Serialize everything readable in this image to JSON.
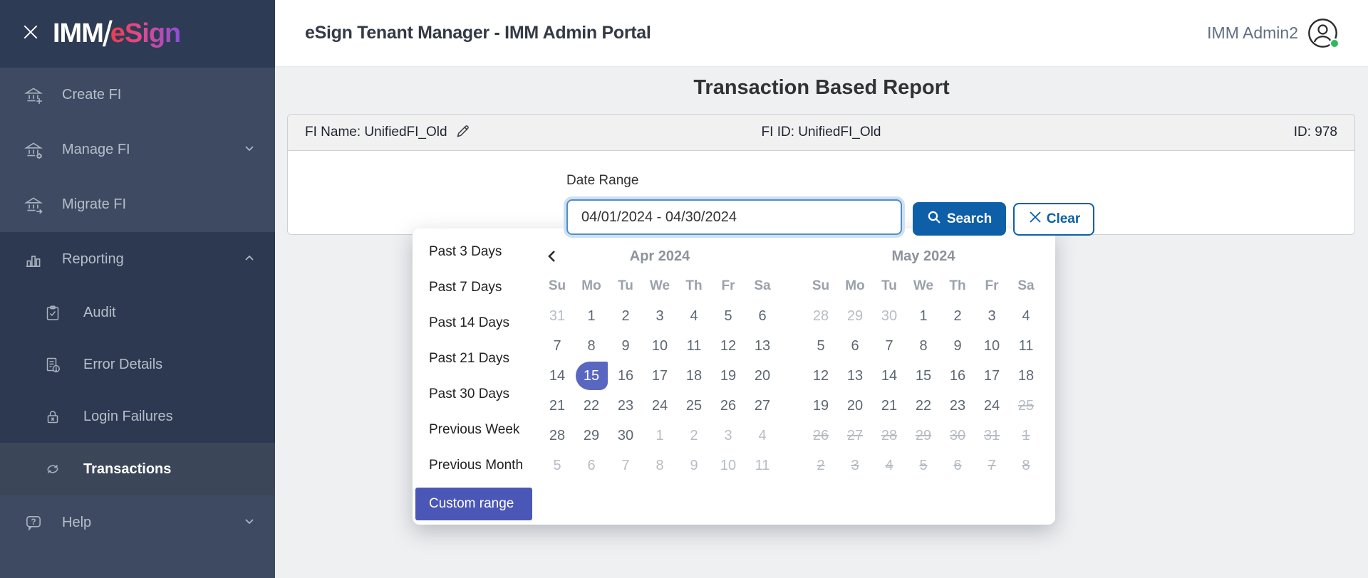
{
  "colors": {
    "accent_blue": "#0d5fa8",
    "selected_day_indigo": "#5a67c1",
    "custom_range_indigo": "#4b57b7",
    "status_green": "#2eb85c"
  },
  "sidebar": {
    "logo": {
      "imm": "IMM",
      "slash": "/",
      "esign": "eSign"
    },
    "items": [
      {
        "label": "Create FI"
      },
      {
        "label": "Manage FI"
      },
      {
        "label": "Migrate FI"
      },
      {
        "label": "Reporting"
      },
      {
        "label": "Audit"
      },
      {
        "label": "Error Details"
      },
      {
        "label": "Login Failures"
      },
      {
        "label": "Transactions"
      },
      {
        "label": "Help"
      }
    ]
  },
  "header": {
    "title": "eSign Tenant Manager - IMM Admin Portal",
    "user_name": "IMM Admin2"
  },
  "main": {
    "page_title": "Transaction Based Report",
    "fi_bar": {
      "fi_name": "FI Name: UnifiedFI_Old",
      "fi_id": "FI ID: UnifiedFI_Old",
      "record_id": "ID: 978"
    },
    "form": {
      "date_range_label": "Date Range",
      "date_range_value": "04/01/2024 - 04/30/2024",
      "search_label": "Search",
      "clear_label": "Clear"
    }
  },
  "datepicker": {
    "presets": [
      "Past 3 Days",
      "Past 7 Days",
      "Past 14 Days",
      "Past 21 Days",
      "Past 30 Days",
      "Previous Week",
      "Previous Month"
    ],
    "custom_range_label": "Custom range",
    "day_headers": [
      "Su",
      "Mo",
      "Tu",
      "We",
      "Th",
      "Fr",
      "Sa"
    ],
    "months": [
      {
        "title": "Apr 2024",
        "weeks": [
          [
            {
              "d": "31",
              "s": "m"
            },
            {
              "d": "1",
              "s": "n"
            },
            {
              "d": "2",
              "s": "n"
            },
            {
              "d": "3",
              "s": "n"
            },
            {
              "d": "4",
              "s": "n"
            },
            {
              "d": "5",
              "s": "n"
            },
            {
              "d": "6",
              "s": "n"
            }
          ],
          [
            {
              "d": "7",
              "s": "n"
            },
            {
              "d": "8",
              "s": "n"
            },
            {
              "d": "9",
              "s": "n"
            },
            {
              "d": "10",
              "s": "n"
            },
            {
              "d": "11",
              "s": "n"
            },
            {
              "d": "12",
              "s": "n"
            },
            {
              "d": "13",
              "s": "n"
            }
          ],
          [
            {
              "d": "14",
              "s": "n"
            },
            {
              "d": "15",
              "s": "s"
            },
            {
              "d": "16",
              "s": "n"
            },
            {
              "d": "17",
              "s": "n"
            },
            {
              "d": "18",
              "s": "n"
            },
            {
              "d": "19",
              "s": "n"
            },
            {
              "d": "20",
              "s": "n"
            }
          ],
          [
            {
              "d": "21",
              "s": "n"
            },
            {
              "d": "22",
              "s": "n"
            },
            {
              "d": "23",
              "s": "n"
            },
            {
              "d": "24",
              "s": "n"
            },
            {
              "d": "25",
              "s": "n"
            },
            {
              "d": "26",
              "s": "n"
            },
            {
              "d": "27",
              "s": "n"
            }
          ],
          [
            {
              "d": "28",
              "s": "n"
            },
            {
              "d": "29",
              "s": "n"
            },
            {
              "d": "30",
              "s": "n"
            },
            {
              "d": "1",
              "s": "m"
            },
            {
              "d": "2",
              "s": "m"
            },
            {
              "d": "3",
              "s": "m"
            },
            {
              "d": "4",
              "s": "m"
            }
          ],
          [
            {
              "d": "5",
              "s": "m"
            },
            {
              "d": "6",
              "s": "m"
            },
            {
              "d": "7",
              "s": "m"
            },
            {
              "d": "8",
              "s": "m"
            },
            {
              "d": "9",
              "s": "m"
            },
            {
              "d": "10",
              "s": "m"
            },
            {
              "d": "11",
              "s": "m"
            }
          ]
        ]
      },
      {
        "title": "May 2024",
        "weeks": [
          [
            {
              "d": "28",
              "s": "m"
            },
            {
              "d": "29",
              "s": "m"
            },
            {
              "d": "30",
              "s": "m"
            },
            {
              "d": "1",
              "s": "n"
            },
            {
              "d": "2",
              "s": "n"
            },
            {
              "d": "3",
              "s": "n"
            },
            {
              "d": "4",
              "s": "n"
            }
          ],
          [
            {
              "d": "5",
              "s": "n"
            },
            {
              "d": "6",
              "s": "n"
            },
            {
              "d": "7",
              "s": "n"
            },
            {
              "d": "8",
              "s": "n"
            },
            {
              "d": "9",
              "s": "n"
            },
            {
              "d": "10",
              "s": "n"
            },
            {
              "d": "11",
              "s": "n"
            }
          ],
          [
            {
              "d": "12",
              "s": "n"
            },
            {
              "d": "13",
              "s": "n"
            },
            {
              "d": "14",
              "s": "n"
            },
            {
              "d": "15",
              "s": "n"
            },
            {
              "d": "16",
              "s": "n"
            },
            {
              "d": "17",
              "s": "n"
            },
            {
              "d": "18",
              "s": "n"
            }
          ],
          [
            {
              "d": "19",
              "s": "n"
            },
            {
              "d": "20",
              "s": "n"
            },
            {
              "d": "21",
              "s": "n"
            },
            {
              "d": "22",
              "s": "n"
            },
            {
              "d": "23",
              "s": "n"
            },
            {
              "d": "24",
              "s": "n"
            },
            {
              "d": "25",
              "s": "x"
            }
          ],
          [
            {
              "d": "26",
              "s": "x"
            },
            {
              "d": "27",
              "s": "x"
            },
            {
              "d": "28",
              "s": "x"
            },
            {
              "d": "29",
              "s": "x"
            },
            {
              "d": "30",
              "s": "x"
            },
            {
              "d": "31",
              "s": "x"
            },
            {
              "d": "1",
              "s": "x"
            }
          ],
          [
            {
              "d": "2",
              "s": "x"
            },
            {
              "d": "3",
              "s": "x"
            },
            {
              "d": "4",
              "s": "x"
            },
            {
              "d": "5",
              "s": "x"
            },
            {
              "d": "6",
              "s": "x"
            },
            {
              "d": "7",
              "s": "x"
            },
            {
              "d": "8",
              "s": "x"
            }
          ]
        ]
      }
    ]
  }
}
